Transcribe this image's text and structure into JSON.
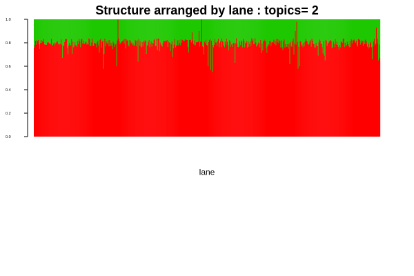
{
  "chart_data": {
    "type": "bar",
    "stacked": true,
    "title": "Structure arranged by lane : topics= 2",
    "xlabel": "lane",
    "ylabel": "",
    "ylim": [
      0,
      1
    ],
    "yticks": [
      "0.0",
      "0.2",
      "0.4",
      "0.6",
      "0.8",
      "1.0"
    ],
    "grid": false,
    "legend": "none",
    "n_samples": 500,
    "series": [
      {
        "name": "",
        "color": "#ff0000",
        "mean": 0.8,
        "values": []
      },
      {
        "name": "",
        "color": "#1ec800",
        "mean": 0.2,
        "values": []
      }
    ],
    "notable_samples": [
      {
        "index": 100,
        "value": 0.58
      },
      {
        "index": 119,
        "value": 0.6
      },
      {
        "index": 121,
        "value": 1.0
      },
      {
        "index": 150,
        "value": 0.64
      },
      {
        "index": 228,
        "value": 0.89
      },
      {
        "index": 238,
        "value": 0.9
      },
      {
        "index": 242,
        "value": 1.0
      },
      {
        "index": 245,
        "value": 0.7
      },
      {
        "index": 251,
        "value": 0.6
      },
      {
        "index": 255,
        "value": 0.57
      },
      {
        "index": 257,
        "value": 0.55
      },
      {
        "index": 290,
        "value": 0.63
      },
      {
        "index": 369,
        "value": 0.62
      },
      {
        "index": 375,
        "value": 0.7
      },
      {
        "index": 377,
        "value": 0.9
      },
      {
        "index": 379,
        "value": 0.98
      },
      {
        "index": 381,
        "value": 0.58
      },
      {
        "index": 383,
        "value": 0.6
      },
      {
        "index": 420,
        "value": 0.65
      },
      {
        "index": 488,
        "value": 0.66
      },
      {
        "index": 494,
        "value": 0.93
      },
      {
        "index": 497,
        "value": 0.65
      },
      {
        "index": 499,
        "value": 0.67
      }
    ]
  }
}
